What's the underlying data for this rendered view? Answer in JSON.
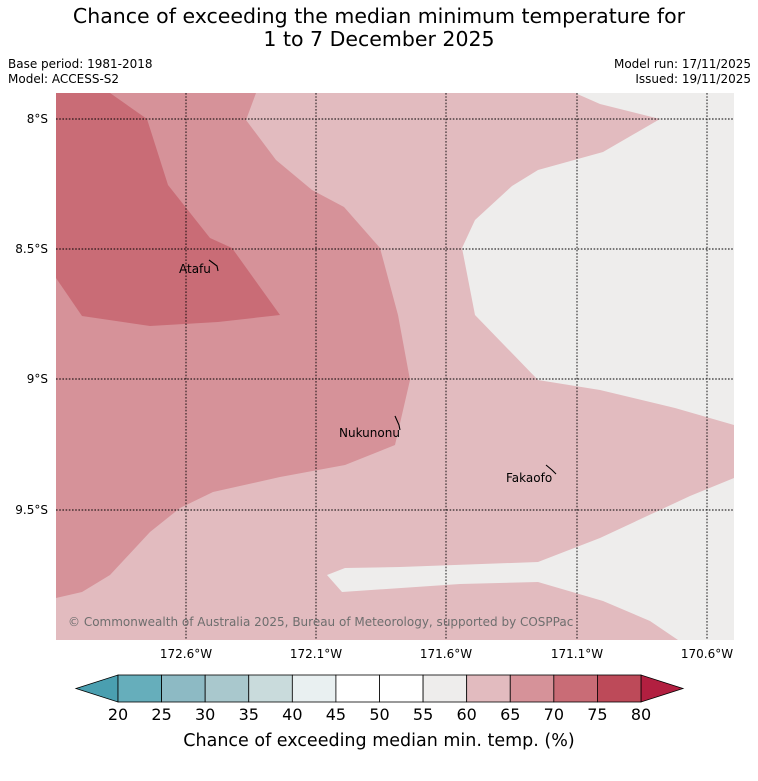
{
  "title": {
    "line1": "Chance of exceeding the median minimum temperature for",
    "line2": "1 to 7 December 2025"
  },
  "meta": {
    "base_period": "Base period: 1981-2018",
    "model": "Model: ACCESS-S2",
    "model_run": "Model run: 17/11/2025",
    "issued": "Issued: 19/11/2025"
  },
  "map": {
    "lat_labels": [
      "8°S",
      "8.5°S",
      "9°S",
      "9.5°S"
    ],
    "lon_labels": [
      "172.6°W",
      "172.1°W",
      "171.6°W",
      "171.1°W",
      "170.6°W"
    ],
    "places": [
      "Atafu",
      "Nukunonu",
      "Fakaofo"
    ],
    "copyright": "© Commonwealth of Australia 2025, Bureau of Meteorology, supported by COSPPac",
    "zone_colors": {
      "50_55": "#ffffff",
      "55_60": "#eeedec",
      "60_65": "#e2bbbf",
      "65_70": "#d69299",
      "70_75": "#c96c76"
    }
  },
  "colorbar": {
    "ticks": [
      "20",
      "25",
      "30",
      "35",
      "40",
      "45",
      "50",
      "55",
      "60",
      "65",
      "70",
      "75",
      "80"
    ],
    "colors": [
      "#66aebb",
      "#8dbac4",
      "#a9c8cd",
      "#c9dbdc",
      "#e9f0f1",
      "#ffffff",
      "#ffffff",
      "#eeedec",
      "#e2bbbf",
      "#d69299",
      "#c96c76",
      "#bd4a59"
    ],
    "low_color": "#4a9fb0",
    "high_color": "#b21f40",
    "title": "Chance of exceeding median min. temp. (%)"
  }
}
